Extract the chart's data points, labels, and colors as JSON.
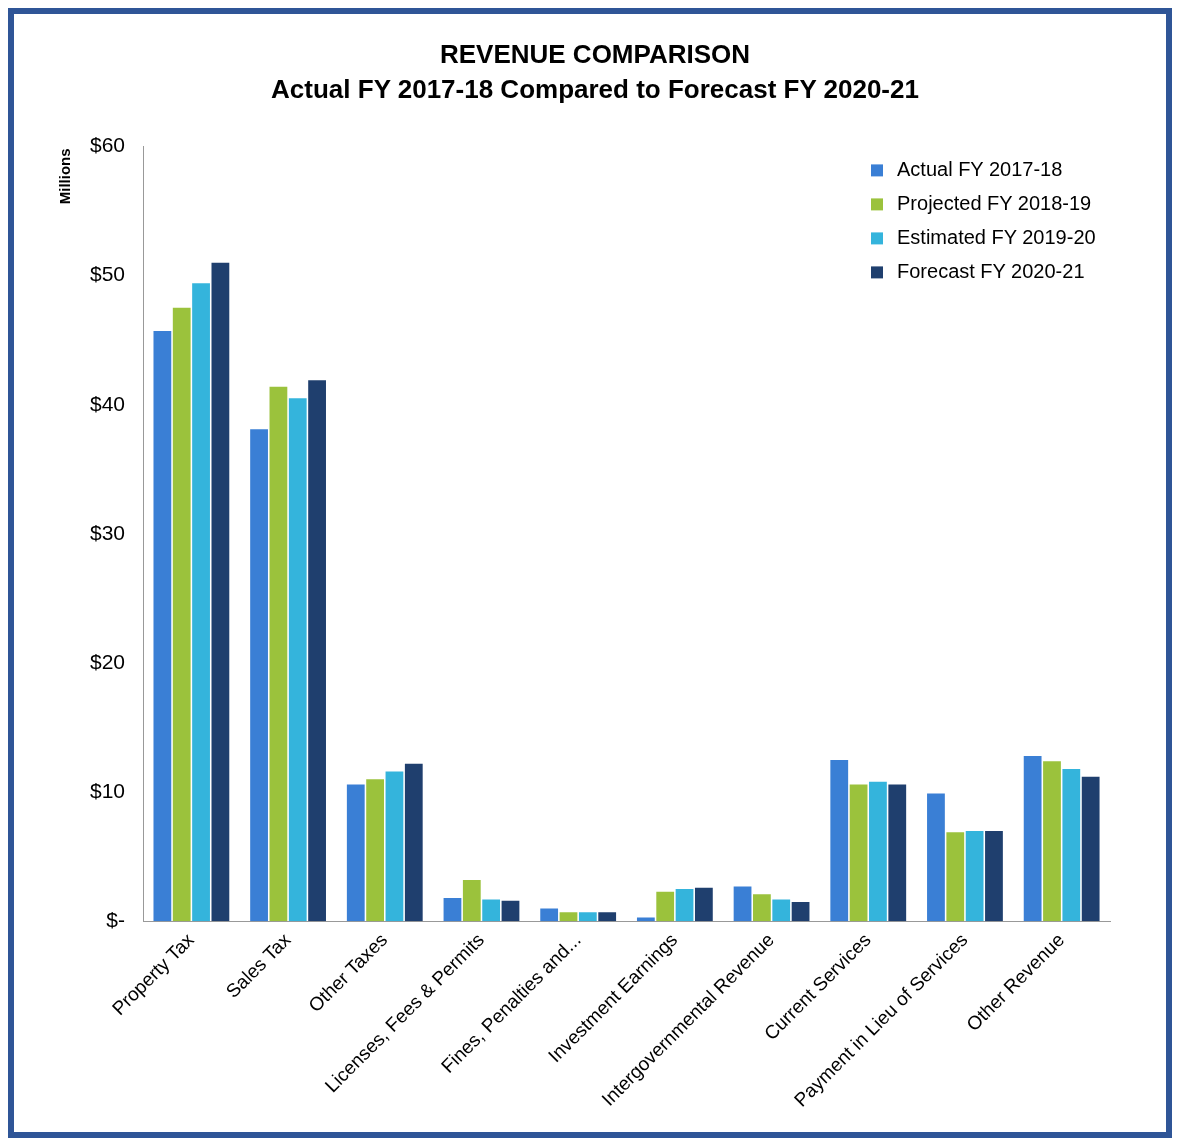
{
  "chart_data": {
    "type": "bar",
    "title": "REVENUE COMPARISON",
    "subtitle": "Actual FY 2017-18 Compared to Forecast FY 2020-21",
    "ylabel": "Millions",
    "categories": [
      "Property Tax",
      "Sales Tax",
      "Other Taxes",
      "Licenses, Fees & Permits",
      "Fines, Penalties and...",
      "Investment Earnings",
      "Intergovernmental Revenue",
      "Current Services",
      "Payment in Lieu of Services",
      "Other Revenue"
    ],
    "series": [
      {
        "name": "Actual FY 2017-18",
        "color": "#3a7fd5",
        "values": [
          45.7,
          38.1,
          10.6,
          1.8,
          1.0,
          0.3,
          2.7,
          12.5,
          9.9,
          12.8
        ]
      },
      {
        "name": "Projected FY 2018-19",
        "color": "#9bc23c",
        "values": [
          47.5,
          41.4,
          11.0,
          3.2,
          0.7,
          2.3,
          2.1,
          10.6,
          6.9,
          12.4
        ]
      },
      {
        "name": "Estimated FY 2019-20",
        "color": "#34b4dc",
        "values": [
          49.4,
          40.5,
          11.6,
          1.7,
          0.7,
          2.5,
          1.7,
          10.8,
          7.0,
          11.8
        ]
      },
      {
        "name": "Forecast FY 2020-21",
        "color": "#1f3f6e",
        "values": [
          51.0,
          41.9,
          12.2,
          1.6,
          0.7,
          2.6,
          1.5,
          10.6,
          7.0,
          11.2
        ]
      }
    ],
    "ylim": [
      0,
      60
    ],
    "yticks": [
      {
        "value": 0,
        "label": "$-"
      },
      {
        "value": 10,
        "label": "$10"
      },
      {
        "value": 20,
        "label": "$20"
      },
      {
        "value": 30,
        "label": "$30"
      },
      {
        "value": 40,
        "label": "$40"
      },
      {
        "value": 50,
        "label": "$50"
      },
      {
        "value": 60,
        "label": "$60"
      }
    ],
    "grid": false,
    "legend": "top right"
  }
}
